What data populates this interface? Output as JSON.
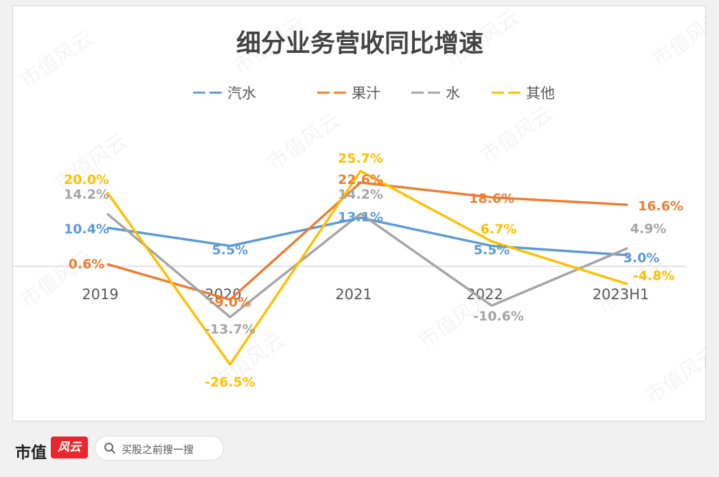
{
  "chart_data": {
    "type": "line",
    "title": "细分业务营收同比增速",
    "categories": [
      "2019",
      "2020",
      "2021",
      "2022",
      "2023H1"
    ],
    "ylim": [
      -30,
      30
    ],
    "grid": false,
    "legend_position": "top",
    "series": [
      {
        "name": "汽水",
        "color": "#5b9bd5",
        "values": [
          10.4,
          5.5,
          13.1,
          5.5,
          3.0
        ],
        "labels": [
          "10.4%",
          "5.5%",
          "13.1%",
          "5.5%",
          "3.0%"
        ]
      },
      {
        "name": "果汁",
        "color": "#ed7d31",
        "values": [
          0.6,
          -9.0,
          22.6,
          18.6,
          16.6
        ],
        "labels": [
          "0.6%",
          "-9.0%",
          "22.6%",
          "18.6%",
          "16.6%"
        ]
      },
      {
        "name": "水",
        "color": "#a5a5a5",
        "values": [
          14.2,
          -13.7,
          14.2,
          -10.6,
          4.9
        ],
        "labels": [
          "14.2%",
          "-13.7%",
          "14.2%",
          "-10.6%",
          "4.9%"
        ]
      },
      {
        "name": "其他",
        "color": "#ffc000",
        "values": [
          20.0,
          -26.5,
          25.7,
          6.7,
          -4.8
        ],
        "labels": [
          "20.0%",
          "-26.5%",
          "25.7%",
          "6.7%",
          "-4.8%"
        ]
      }
    ]
  },
  "watermark": "市值风云",
  "footer": {
    "brand": "市值",
    "logo_text": "风云",
    "search_text": "买股之前搜一搜"
  }
}
